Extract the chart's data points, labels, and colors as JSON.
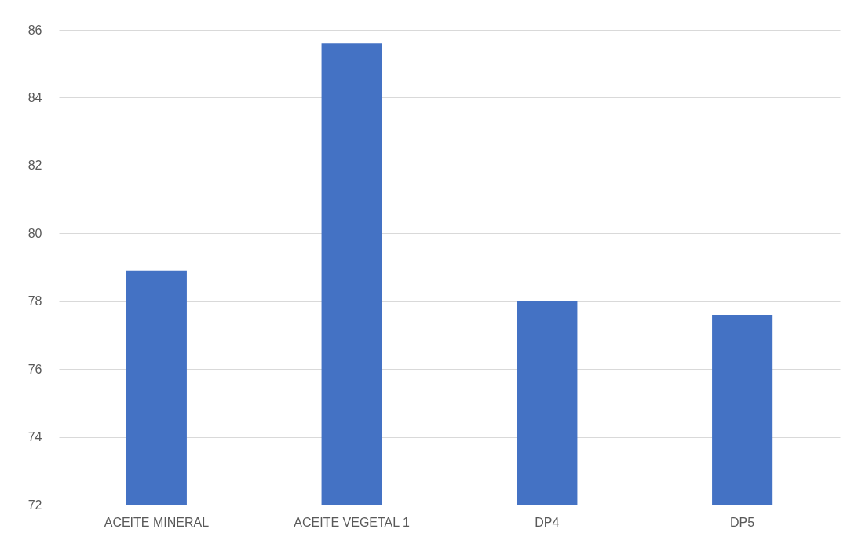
{
  "chart_data": {
    "type": "bar",
    "categories": [
      "ACEITE MINERAL",
      "ACEITE VEGETAL 1",
      "DP4",
      "DP5"
    ],
    "values": [
      78.9,
      85.6,
      78.0,
      77.6
    ],
    "color": "#4472c4",
    "ylim": [
      72,
      86
    ],
    "yticks": [
      72,
      74,
      76,
      78,
      80,
      82,
      84,
      86
    ],
    "grid": "y"
  }
}
